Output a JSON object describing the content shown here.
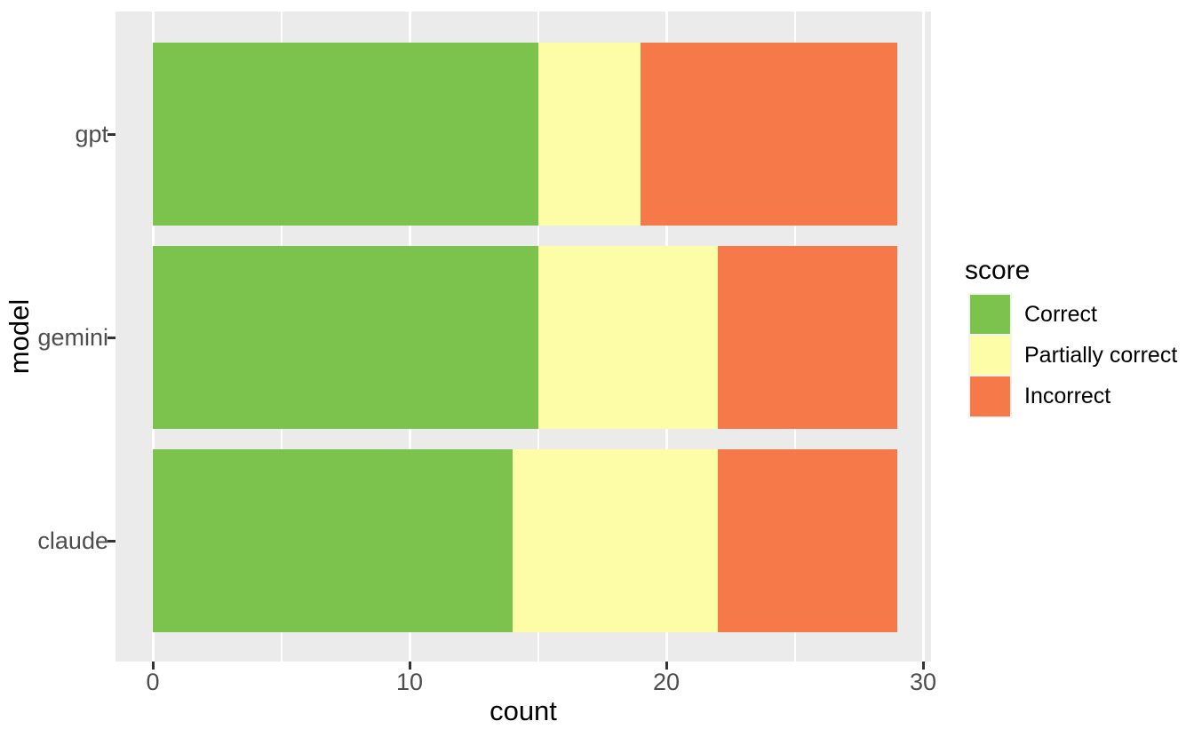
{
  "chart_data": {
    "type": "bar",
    "orientation": "horizontal",
    "stacked": true,
    "title": "",
    "xlabel": "count",
    "ylabel": "model",
    "categories": [
      "gpt",
      "gemini",
      "claude"
    ],
    "series": [
      {
        "name": "Correct",
        "color": "#7CC34E",
        "values": [
          15,
          15,
          14
        ]
      },
      {
        "name": "Partially correct",
        "color": "#FDFDA8",
        "values": [
          4,
          7,
          8
        ]
      },
      {
        "name": "Incorrect",
        "color": "#F6794A",
        "values": [
          10,
          7,
          7
        ]
      }
    ],
    "totals": [
      29,
      29,
      29
    ],
    "xlim": [
      0,
      30
    ],
    "x_major_ticks": [
      0,
      10,
      20,
      30
    ],
    "x_minor_gridlines": [
      5,
      15,
      25
    ],
    "grid": "on",
    "panel_background": "#EBEBEB",
    "gridline_color": "#FFFFFF",
    "tick_mark_color": "#333333",
    "tick_label_color": "#4D4D4D",
    "legend_title": "score",
    "legend_position": "right"
  }
}
